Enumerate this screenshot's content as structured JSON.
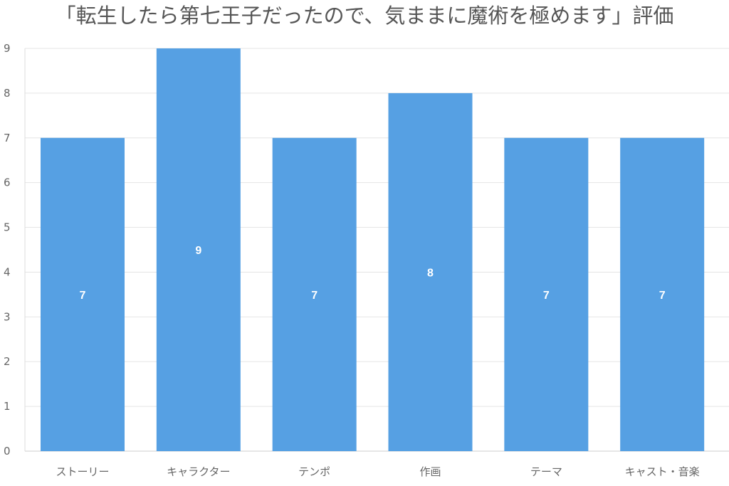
{
  "chart_data": {
    "type": "bar",
    "title": "「転生したら第七王子だったので、気ままに魔術を極めます」評価",
    "categories": [
      "ストーリー",
      "キャラクター",
      "テンポ",
      "作画",
      "テーマ",
      "キャスト・音楽"
    ],
    "values": [
      7,
      9,
      7,
      8,
      7,
      7
    ],
    "data_labels": [
      "7",
      "9",
      "7",
      "8",
      "7",
      "7"
    ],
    "y_ticks": [
      "0",
      "1",
      "2",
      "3",
      "4",
      "5",
      "6",
      "7",
      "8",
      "9"
    ],
    "xlabel": "",
    "ylabel": "",
    "ylim": [
      0,
      9
    ],
    "grid": true,
    "legend": "none",
    "colors": {
      "bar": "#56A0E3",
      "grid": "#e5e5e5",
      "axis_text": "#666666",
      "title_text": "#555555",
      "data_label_text": "#ffffff"
    }
  }
}
